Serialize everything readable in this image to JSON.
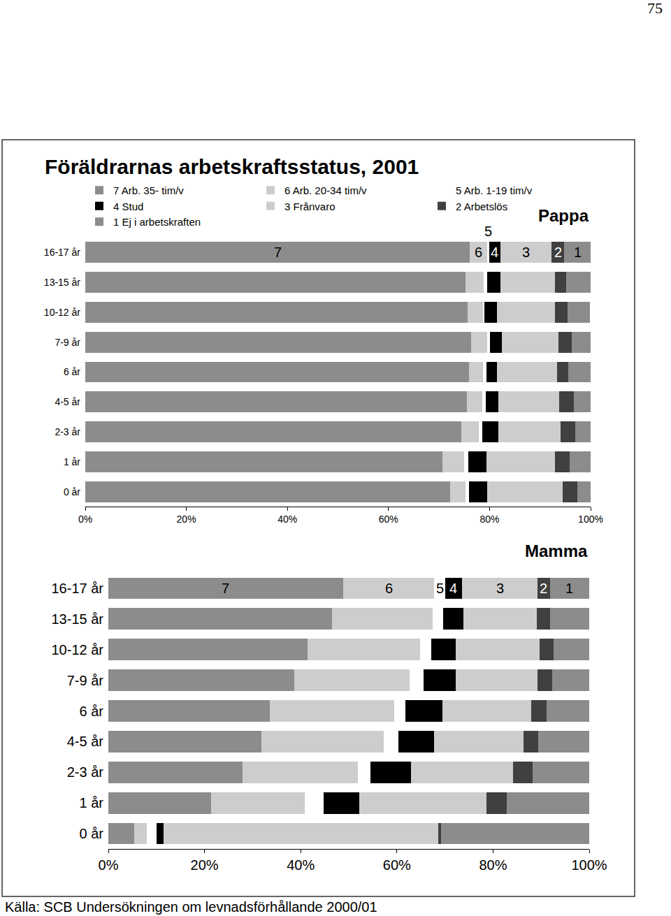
{
  "page_number": "75",
  "title": "Föräldrarnas arbetskraftsstatus, 2001",
  "source": "Källa: SCB Undersökningen om levnadsförhållande 2000/01",
  "chart_data": [
    {
      "type": "bar",
      "title": "Pappa",
      "orientation": "horizontal",
      "stacked": true,
      "grid": false,
      "legend": "top left",
      "categories": [
        "16-17 år",
        "13-15 år",
        "10-12 år",
        "7-9 år",
        "6 år",
        "4-5 år",
        "2-3 år",
        "1 år",
        "0 år"
      ],
      "xlim": [
        0,
        100
      ],
      "xticks": [
        {
          "value": 0,
          "label": "0%"
        },
        {
          "value": 20,
          "label": "20%"
        },
        {
          "value": 40,
          "label": "40%"
        },
        {
          "value": 60,
          "label": "60%"
        },
        {
          "value": 80,
          "label": "80%"
        },
        {
          "value": 100,
          "label": "100%"
        }
      ],
      "series": [
        {
          "name": "7 Arb. 35- tim/v",
          "label": "7",
          "color": "#8c8c8c",
          "values": [
            76.1,
            75.2,
            75.7,
            76.3,
            75.9,
            75.5,
            74.4,
            70.7,
            72.2
          ]
        },
        {
          "name": "6 Arb. 20-34 tim/v",
          "label": "6",
          "color": "#cdcdcd",
          "values": [
            3.4,
            3.6,
            3.0,
            3.2,
            2.8,
            3.0,
            3.5,
            4.3,
            3.0
          ]
        },
        {
          "name": "5 Arb. 1-19 tim/v",
          "label": "5",
          "color": "#ffffff",
          "values": [
            0.4,
            0.7,
            0.3,
            0.6,
            0.7,
            0.7,
            0.6,
            0.8,
            0.7
          ]
        },
        {
          "name": "4 Stud",
          "label": "4",
          "color": "#000000",
          "values": [
            2.2,
            2.6,
            2.5,
            2.3,
            2.1,
            2.6,
            3.3,
            3.6,
            3.6
          ]
        },
        {
          "name": "3 Frånvaro",
          "label": "3",
          "color": "#cdcdcd",
          "values": [
            10.1,
            10.9,
            11.5,
            11.3,
            11.9,
            12.0,
            12.2,
            13.6,
            14.9
          ]
        },
        {
          "name": "2 Arbetslös",
          "label": "2",
          "color": "#404040",
          "values": [
            2.6,
            2.2,
            2.4,
            2.5,
            2.2,
            2.9,
            2.9,
            2.9,
            3.0
          ]
        },
        {
          "name": "1 Ej i arbetskraften",
          "label": "1",
          "color": "#8c8c8c",
          "values": [
            5.2,
            4.8,
            4.4,
            3.8,
            4.4,
            3.3,
            3.1,
            4.1,
            2.6
          ]
        }
      ]
    },
    {
      "type": "bar",
      "title": "Mamma",
      "orientation": "horizontal",
      "stacked": true,
      "grid": false,
      "categories": [
        "16-17 år",
        "13-15 år",
        "10-12 år",
        "7-9 år",
        "6 år",
        "4-5 år",
        "2-3 år",
        "1 år",
        "0 år"
      ],
      "xlim": [
        0,
        100
      ],
      "xticks": [
        {
          "value": 0,
          "label": "0%"
        },
        {
          "value": 20,
          "label": "20%"
        },
        {
          "value": 40,
          "label": "40%"
        },
        {
          "value": 60,
          "label": "60%"
        },
        {
          "value": 80,
          "label": "80%"
        },
        {
          "value": 100,
          "label": "100%"
        }
      ],
      "series": [
        {
          "name": "7 Arb. 35- tim/v",
          "label": "7",
          "color": "#8c8c8c",
          "values": [
            48.8,
            46.5,
            41.4,
            38.7,
            33.6,
            31.8,
            27.9,
            21.4,
            5.4
          ]
        },
        {
          "name": "6 Arb. 20-34 tim/v",
          "label": "6",
          "color": "#cdcdcd",
          "values": [
            19.0,
            20.9,
            23.4,
            24.0,
            25.9,
            25.4,
            24.0,
            19.5,
            2.6
          ]
        },
        {
          "name": "5 Arb. 1-19 tim/v",
          "label": "5",
          "color": "#ffffff",
          "values": [
            2.2,
            2.2,
            2.3,
            2.8,
            2.2,
            3.1,
            2.6,
            3.9,
            2.0
          ]
        },
        {
          "name": "4 Stud",
          "label": "4",
          "color": "#000000",
          "values": [
            3.6,
            4.2,
            5.2,
            6.7,
            7.8,
            7.4,
            8.4,
            7.4,
            1.5
          ]
        },
        {
          "name": "3 Frånvaro",
          "label": "3",
          "color": "#cdcdcd",
          "values": [
            15.7,
            15.3,
            17.4,
            17.0,
            18.5,
            18.6,
            21.2,
            26.5,
            57.1
          ]
        },
        {
          "name": "2 Arbetslös",
          "label": "2",
          "color": "#404040",
          "values": [
            2.5,
            2.8,
            2.9,
            3.1,
            3.1,
            3.1,
            4.1,
            4.1,
            0.6
          ]
        },
        {
          "name": "1 Ej i arbetskraften",
          "label": "1",
          "color": "#8c8c8c",
          "values": [
            8.2,
            8.1,
            7.4,
            7.7,
            8.9,
            10.6,
            11.8,
            17.2,
            30.8
          ]
        }
      ]
    }
  ]
}
